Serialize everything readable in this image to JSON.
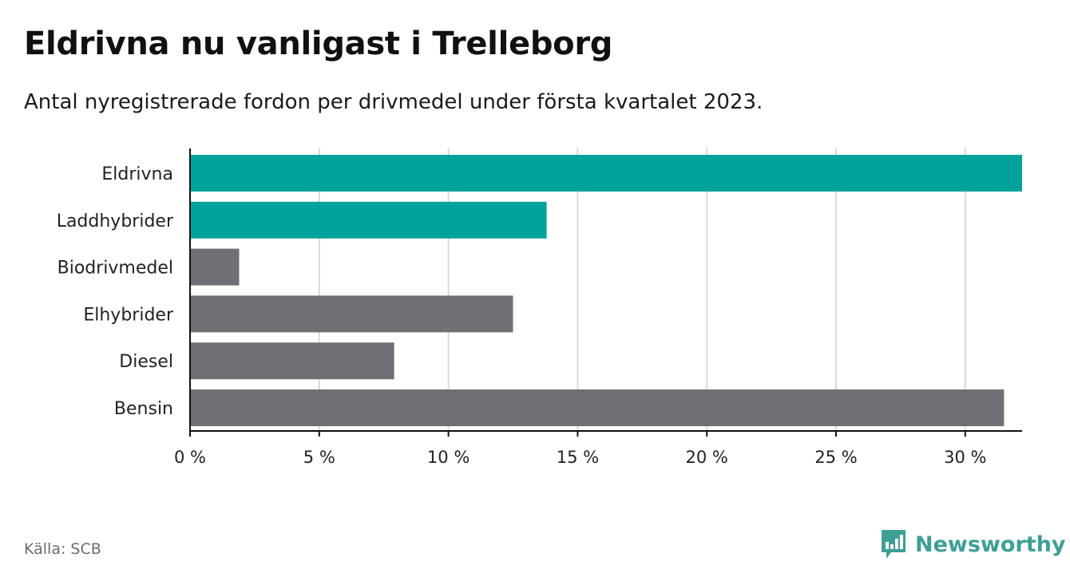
{
  "header": {
    "title": "Eldrivna nu vanligast i Trelleborg",
    "subtitle": "Antal nyregistrerade fordon per drivmedel under första kvartalet 2023."
  },
  "footer": {
    "source": "Källa: SCB",
    "brand": "Newsworthy",
    "brand_icon": "bar-chart-logo-icon"
  },
  "colors": {
    "highlight": "#00a39b",
    "default": "#706f75",
    "brand": "#3d9f96",
    "grid": "#d9d9d9"
  },
  "chart_data": {
    "type": "bar",
    "orientation": "horizontal",
    "title": "Eldrivna nu vanligast i Trelleborg",
    "subtitle": "Antal nyregistrerade fordon per drivmedel under första kvartalet 2023.",
    "categories": [
      "Eldrivna",
      "Laddhybrider",
      "Biodrivmedel",
      "Elhybrider",
      "Diesel",
      "Bensin"
    ],
    "values": [
      32.2,
      13.8,
      1.9,
      12.5,
      7.9,
      31.5
    ],
    "highlighted": [
      true,
      true,
      false,
      false,
      false,
      false
    ],
    "xlim": [
      0,
      32.2
    ],
    "xticks": [
      0,
      5,
      10,
      15,
      20,
      25,
      30
    ],
    "xtick_labels": [
      "0 %",
      "5 %",
      "10 %",
      "15 %",
      "20 %",
      "25 %",
      "30 %"
    ],
    "grid": true
  }
}
